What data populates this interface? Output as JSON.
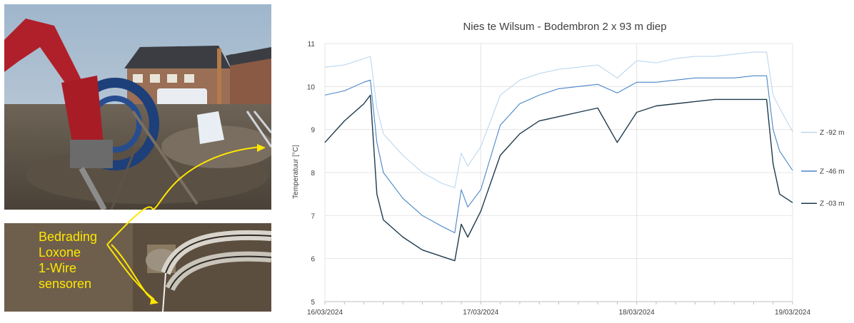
{
  "photos": {
    "top_alt": "excavator-drilling-site-photo",
    "bottom_alt": "trench-with-cables-photo",
    "caption_lines": [
      "Bedrading",
      "Loxone",
      "1-Wire",
      "sensoren"
    ],
    "caption_color": "#ffe600"
  },
  "chart_data": {
    "type": "line",
    "title": "Nies te Wilsum - Bodembron 2 x 93 m diep",
    "xlabel": "",
    "ylabel": "Temperatuur [°C]",
    "ylim": [
      5,
      11
    ],
    "yticks": [
      "5",
      "6",
      "7",
      "8",
      "9",
      "10",
      "11"
    ],
    "xlim": [
      "2024-03-16T00:00",
      "2024-03-19T00:00"
    ],
    "xtick_labels": [
      "16/03/2024",
      "17/03/2024",
      "18/03/2024",
      "19/03/2024"
    ],
    "grid": true,
    "legend_position": "right",
    "series": [
      {
        "name": "Z -92 m",
        "color": "#bcd7ee",
        "x": [
          "2024-03-16T00:00",
          "2024-03-16T03:00",
          "2024-03-16T06:00",
          "2024-03-16T07:00",
          "2024-03-16T08:00",
          "2024-03-16T09:00",
          "2024-03-16T12:00",
          "2024-03-16T15:00",
          "2024-03-16T18:00",
          "2024-03-16T20:00",
          "2024-03-16T21:00",
          "2024-03-16T22:00",
          "2024-03-17T00:00",
          "2024-03-17T03:00",
          "2024-03-17T06:00",
          "2024-03-17T09:00",
          "2024-03-17T12:00",
          "2024-03-17T15:00",
          "2024-03-17T18:00",
          "2024-03-17T21:00",
          "2024-03-18T00:00",
          "2024-03-18T03:00",
          "2024-03-18T06:00",
          "2024-03-18T09:00",
          "2024-03-18T12:00",
          "2024-03-18T15:00",
          "2024-03-18T18:00",
          "2024-03-18T20:00",
          "2024-03-18T21:00",
          "2024-03-18T22:00",
          "2024-03-19T00:00"
        ],
        "values": [
          10.45,
          10.5,
          10.65,
          10.7,
          9.5,
          8.9,
          8.4,
          8.0,
          7.75,
          7.65,
          8.45,
          8.15,
          8.6,
          9.8,
          10.15,
          10.3,
          10.4,
          10.45,
          10.5,
          10.2,
          10.6,
          10.55,
          10.65,
          10.7,
          10.7,
          10.75,
          10.8,
          10.8,
          9.8,
          9.5,
          8.95
        ]
      },
      {
        "name": "Z -46 m",
        "color": "#4a86c8",
        "x": [
          "2024-03-16T00:00",
          "2024-03-16T03:00",
          "2024-03-16T06:00",
          "2024-03-16T07:00",
          "2024-03-16T08:00",
          "2024-03-16T09:00",
          "2024-03-16T12:00",
          "2024-03-16T15:00",
          "2024-03-16T18:00",
          "2024-03-16T20:00",
          "2024-03-16T21:00",
          "2024-03-16T22:00",
          "2024-03-17T00:00",
          "2024-03-17T03:00",
          "2024-03-17T06:00",
          "2024-03-17T09:00",
          "2024-03-17T12:00",
          "2024-03-17T15:00",
          "2024-03-17T18:00",
          "2024-03-17T21:00",
          "2024-03-18T00:00",
          "2024-03-18T03:00",
          "2024-03-18T06:00",
          "2024-03-18T09:00",
          "2024-03-18T12:00",
          "2024-03-18T15:00",
          "2024-03-18T18:00",
          "2024-03-18T20:00",
          "2024-03-18T21:00",
          "2024-03-18T22:00",
          "2024-03-19T00:00"
        ],
        "values": [
          9.8,
          9.9,
          10.1,
          10.15,
          8.7,
          8.0,
          7.4,
          7.0,
          6.75,
          6.6,
          7.6,
          7.2,
          7.6,
          9.1,
          9.6,
          9.8,
          9.95,
          10.0,
          10.05,
          9.85,
          10.1,
          10.1,
          10.15,
          10.2,
          10.2,
          10.2,
          10.25,
          10.25,
          9.0,
          8.5,
          8.05
        ]
      },
      {
        "name": "Z -03 m",
        "color": "#1e3a4c",
        "x": [
          "2024-03-16T00:00",
          "2024-03-16T03:00",
          "2024-03-16T06:00",
          "2024-03-16T07:00",
          "2024-03-16T08:00",
          "2024-03-16T09:00",
          "2024-03-16T12:00",
          "2024-03-16T15:00",
          "2024-03-16T18:00",
          "2024-03-16T20:00",
          "2024-03-16T21:00",
          "2024-03-16T22:00",
          "2024-03-17T00:00",
          "2024-03-17T03:00",
          "2024-03-17T06:00",
          "2024-03-17T09:00",
          "2024-03-17T12:00",
          "2024-03-17T15:00",
          "2024-03-17T18:00",
          "2024-03-17T21:00",
          "2024-03-18T00:00",
          "2024-03-18T03:00",
          "2024-03-18T06:00",
          "2024-03-18T09:00",
          "2024-03-18T12:00",
          "2024-03-18T15:00",
          "2024-03-18T18:00",
          "2024-03-18T20:00",
          "2024-03-18T21:00",
          "2024-03-18T22:00",
          "2024-03-19T00:00"
        ],
        "values": [
          8.7,
          9.2,
          9.6,
          9.8,
          7.5,
          6.9,
          6.5,
          6.2,
          6.05,
          5.95,
          6.8,
          6.5,
          7.1,
          8.4,
          8.9,
          9.2,
          9.3,
          9.4,
          9.5,
          8.7,
          9.4,
          9.55,
          9.6,
          9.65,
          9.7,
          9.7,
          9.7,
          9.7,
          8.2,
          7.5,
          7.3
        ]
      }
    ]
  }
}
